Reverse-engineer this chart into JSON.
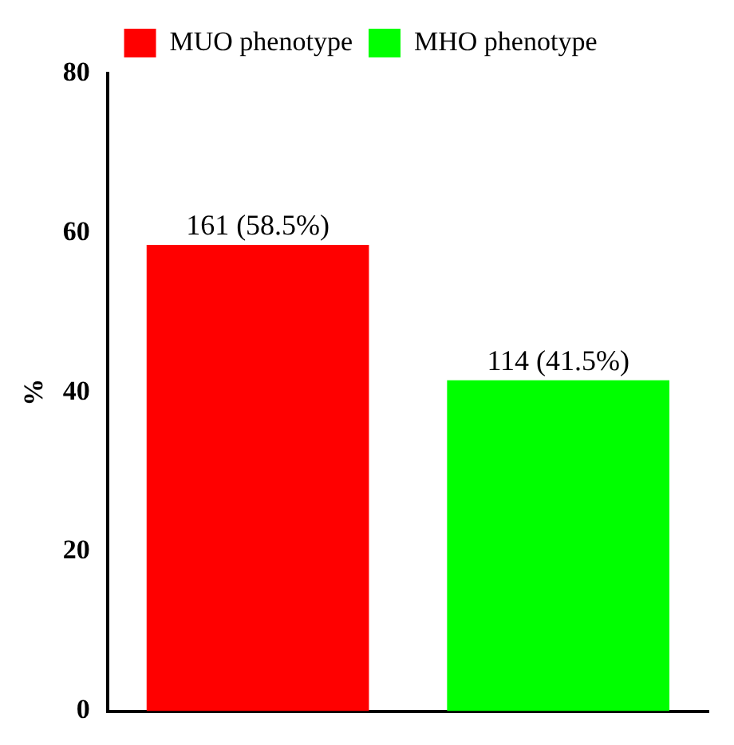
{
  "chart_data": {
    "type": "bar",
    "ylabel": "%",
    "categories": [
      null,
      null
    ],
    "series": [
      {
        "name": "MUO phenotype",
        "color": "#ff0000",
        "values": [
          58.5,
          null
        ],
        "value_labels": [
          "161 (58.5%)",
          null
        ]
      },
      {
        "name": "MHO phenotype",
        "color": "#00ff00",
        "values": [
          null,
          41.5
        ],
        "value_labels": [
          null,
          "114 (41.5%)"
        ]
      }
    ],
    "ylim": [
      0,
      80
    ],
    "yticks": [
      0,
      20,
      40,
      60,
      80
    ],
    "grid": false,
    "legend": "top"
  }
}
